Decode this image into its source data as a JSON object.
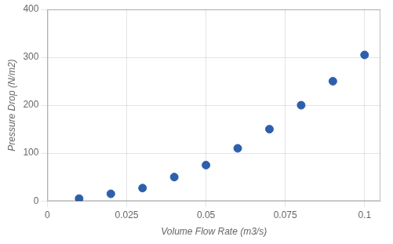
{
  "chart_data": {
    "type": "scatter",
    "x": [
      0.01,
      0.02,
      0.03,
      0.04,
      0.05,
      0.06,
      0.07,
      0.08,
      0.09,
      0.1
    ],
    "values": [
      5,
      15,
      27,
      50,
      75,
      110,
      150,
      200,
      250,
      305
    ],
    "color": "#2E5FAC",
    "xlabel": "Volume Flow Rate (m3/s)",
    "ylabel": "Pressure Drop (N/m2)",
    "xlim": [
      0,
      0.105
    ],
    "ylim": [
      0,
      400
    ],
    "xticks": [
      0,
      0.025,
      0.05,
      0.075,
      0.1
    ],
    "yticks": [
      0,
      100,
      200,
      300,
      400
    ],
    "grid": true
  }
}
